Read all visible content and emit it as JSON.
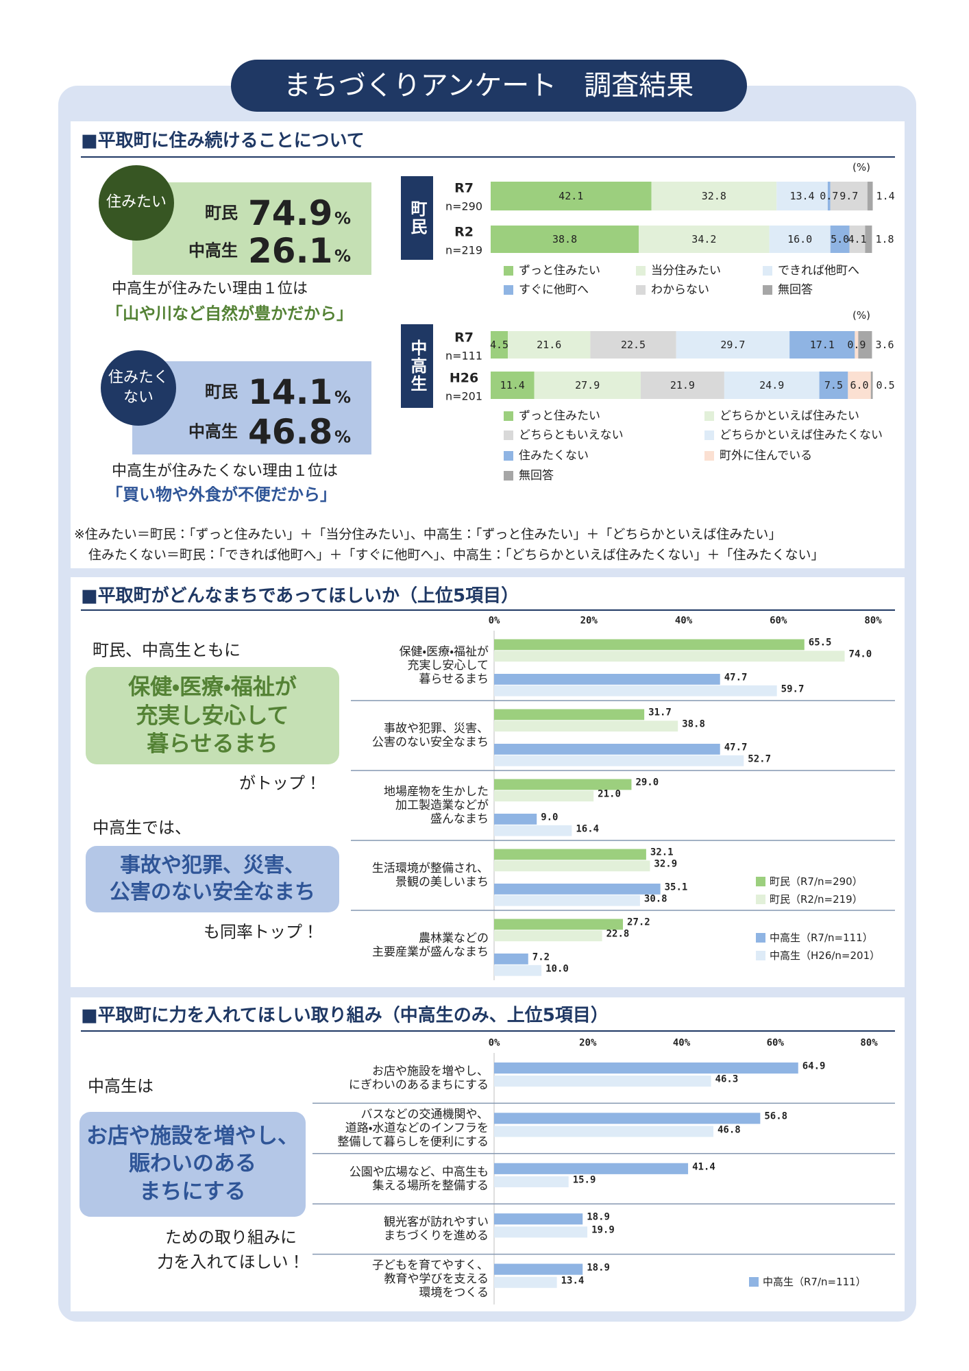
{
  "header": {
    "title": "まちづくりアンケート　調査結果"
  },
  "sections": [
    {
      "heading": "■平取町に住み続けることについて",
      "callouts": [
        {
          "badge": "住みたい",
          "rows": [
            {
              "label": "町民",
              "value": 74.9,
              "unit": "%"
            },
            {
              "label": "中高生",
              "value": 26.1,
              "unit": "%"
            }
          ],
          "reason_intro": "中高生が住みたい理由１位は",
          "reason": "「山や川など自然が豊かだから」"
        },
        {
          "badge": "住みたく\nない",
          "rows": [
            {
              "label": "町民",
              "value": 14.1,
              "unit": "%"
            },
            {
              "label": "中高生",
              "value": 46.8,
              "unit": "%"
            }
          ],
          "reason_intro": "中高生が住みたくない理由１位は",
          "reason": "「買い物や外食が不便だから」"
        }
      ],
      "notes": [
        "※住みたい＝町民：「ずっと住みたい」＋「当分住みたい」、中高生：「ずっと住みたい」＋「どちらかといえば住みたい」",
        "住みたくない＝町民：「できれば他町へ」＋「すぐに他町へ」、中高生：「どちらかといえば住みたくない」＋「住みたくない」"
      ]
    },
    {
      "heading": "■平取町がどんなまちであってほしいか（上位5項目）",
      "lead": "町民、中高生ともに",
      "highlight": "保健・医療・福祉が\n充実し安心して\n暮らせるまち",
      "tail": "がトップ！",
      "lead2": "中高生では、",
      "highlight2": "事故や犯罪、災害、\n公害のない安全なまち",
      "tail2": "も同率トップ！"
    },
    {
      "heading": "■平取町に力を入れてほしい取り組み（中高生のみ、上位5項目）",
      "lead": "中高生は",
      "highlight": "お店や施設を増やし、\n賑わいのある\nまちにする",
      "tail": "ための取り組みに\n力を入れてほしい！"
    }
  ],
  "chart_data": [
    {
      "type": "bar",
      "orientation": "horizontal",
      "stacked": true,
      "group_label": "町民",
      "unit_label": "(%)",
      "categories": [
        "R7",
        "R2"
      ],
      "category_notes": [
        "n=290",
        "n=219"
      ],
      "xlim": [
        0,
        100
      ],
      "series": [
        {
          "name": "ずっと住みたい",
          "color": "#9ccf7e",
          "values": [
            42.1,
            38.8
          ],
          "value_labels": [
            "42.1",
            "38.8"
          ]
        },
        {
          "name": "当分住みたい",
          "color": "#e2f0d9",
          "values": [
            32.8,
            34.2
          ],
          "value_labels": [
            "32.8",
            "34.2"
          ]
        },
        {
          "name": "できれば他町へ",
          "color": "#deebf7",
          "values": [
            13.4,
            16.0
          ],
          "value_labels": [
            "13.4",
            "16.0"
          ]
        },
        {
          "name": "すぐに他町へ",
          "color": "#8fb4e3",
          "values": [
            0.7,
            5.0
          ],
          "value_labels": [
            "0.7",
            "5.0"
          ]
        },
        {
          "name": "わからない",
          "color": "#d9d9d9",
          "values": [
            9.7,
            4.1
          ],
          "value_labels": [
            "9.7",
            "4.1"
          ]
        },
        {
          "name": "無回答",
          "color": "#a6a6a6",
          "values": [
            1.4,
            1.8
          ],
          "value_labels": [
            "1.4",
            "1.8"
          ]
        }
      ]
    },
    {
      "type": "bar",
      "orientation": "horizontal",
      "stacked": true,
      "group_label": "中高生",
      "unit_label": "(%)",
      "categories": [
        "R7",
        "H26"
      ],
      "category_notes": [
        "n=111",
        "n=201"
      ],
      "xlim": [
        0,
        100
      ],
      "series": [
        {
          "name": "ずっと住みたい",
          "color": "#9ccf7e",
          "values": [
            4.5,
            11.4
          ],
          "value_labels": [
            "4.5",
            "11.4"
          ]
        },
        {
          "name": "どちらかといえば住みたい",
          "color": "#e2f0d9",
          "values": [
            21.6,
            27.9
          ],
          "value_labels": [
            "21.6",
            "27.9"
          ]
        },
        {
          "name": "どちらともいえない",
          "color": "#d9d9d9",
          "values": [
            22.5,
            21.9
          ],
          "value_labels": [
            "22.5",
            "21.9"
          ]
        },
        {
          "name": "どちらかといえば住みたくない",
          "color": "#deebf7",
          "values": [
            29.7,
            24.9
          ],
          "value_labels": [
            "29.7",
            "24.9"
          ]
        },
        {
          "name": "住みたくない",
          "color": "#8fb4e3",
          "values": [
            17.1,
            7.5
          ],
          "value_labels": [
            "17.1",
            "7.5"
          ]
        },
        {
          "name": "町外に住んでいる",
          "color": "#fbe0d2",
          "values": [
            0.9,
            6.0
          ],
          "value_labels": [
            "0.9",
            "6.0"
          ]
        },
        {
          "name": "無回答",
          "color": "#a6a6a6",
          "values": [
            3.6,
            0.5
          ],
          "value_labels": [
            "3.6",
            "0.5"
          ]
        }
      ]
    },
    {
      "type": "bar",
      "orientation": "horizontal",
      "categories": [
        "保健・医療・福祉が\n充実し安心して\n暮らせるまち",
        "事故や犯罪、災害、\n公害のない安全なまち",
        "地場産物を生かした\n加工製造業などが\n盛んなまち",
        "生活環境が整備され、\n景観の美しいまち",
        "農林業などの\n主要産業が盛んなまち"
      ],
      "xlim": [
        0,
        80
      ],
      "xticks": [
        {
          "value": 0,
          "label": "0%"
        },
        {
          "value": 20,
          "label": "20%"
        },
        {
          "value": 40,
          "label": "40%"
        },
        {
          "value": 60,
          "label": "60%"
        },
        {
          "value": 80,
          "label": "80%"
        }
      ],
      "series": [
        {
          "name": "町民（R7/n=290）",
          "color": "#9ccf7e",
          "values": [
            65.5,
            31.7,
            29.0,
            32.1,
            27.2
          ],
          "value_labels": [
            "65.5",
            "31.7",
            "29.0",
            "32.1",
            "27.2"
          ]
        },
        {
          "name": "町民（R2/n=219）",
          "color": "#e2f0d9",
          "values": [
            74.0,
            38.8,
            21.0,
            32.9,
            22.8
          ],
          "value_labels": [
            "74.0",
            "38.8",
            "21.0",
            "32.9",
            "22.8"
          ]
        },
        {
          "name": "中高生（R7/n=111）",
          "color": "#8fb4e3",
          "values": [
            47.7,
            47.7,
            9.0,
            35.1,
            7.2
          ],
          "value_labels": [
            "47.7",
            "47.7",
            "9.0",
            "35.1",
            "7.2"
          ]
        },
        {
          "name": "中高生（H26/n=201）",
          "color": "#deebf7",
          "values": [
            59.7,
            52.7,
            16.4,
            30.8,
            10.0
          ],
          "value_labels": [
            "59.7",
            "52.7",
            "16.4",
            "30.8",
            "10.0"
          ]
        }
      ]
    },
    {
      "type": "bar",
      "orientation": "horizontal",
      "categories": [
        "お店や施設を増やし、\nにぎわいのあるまちにする",
        "バスなどの交通機関や、\n道路・水道などのインフラを\n整備して暮らしを便利にする",
        "公園や広場など、中高生も\n集える場所を整備する",
        "観光客が訪れやすい\nまちづくりを進める",
        "子どもを育てやすく、\n教育や学びを支える\n環境をつくる"
      ],
      "xlim": [
        0,
        80
      ],
      "xticks": [
        {
          "value": 0,
          "label": "0%"
        },
        {
          "value": 20,
          "label": "20%"
        },
        {
          "value": 40,
          "label": "40%"
        },
        {
          "value": 60,
          "label": "60%"
        },
        {
          "value": 80,
          "label": "80%"
        }
      ],
      "series": [
        {
          "name": "中高生（R7/n=111）",
          "color": "#8fb4e3",
          "values": [
            64.9,
            56.8,
            41.4,
            18.9,
            18.9
          ],
          "value_labels": [
            "64.9",
            "56.8",
            "41.4",
            "18.9",
            "18.9"
          ]
        },
        {
          "color": "#deebf7",
          "values": [
            46.3,
            46.8,
            15.9,
            19.9,
            13.4
          ],
          "value_labels": [
            "46.3",
            "46.8",
            "15.9",
            "19.9",
            "13.4"
          ]
        }
      ]
    }
  ]
}
